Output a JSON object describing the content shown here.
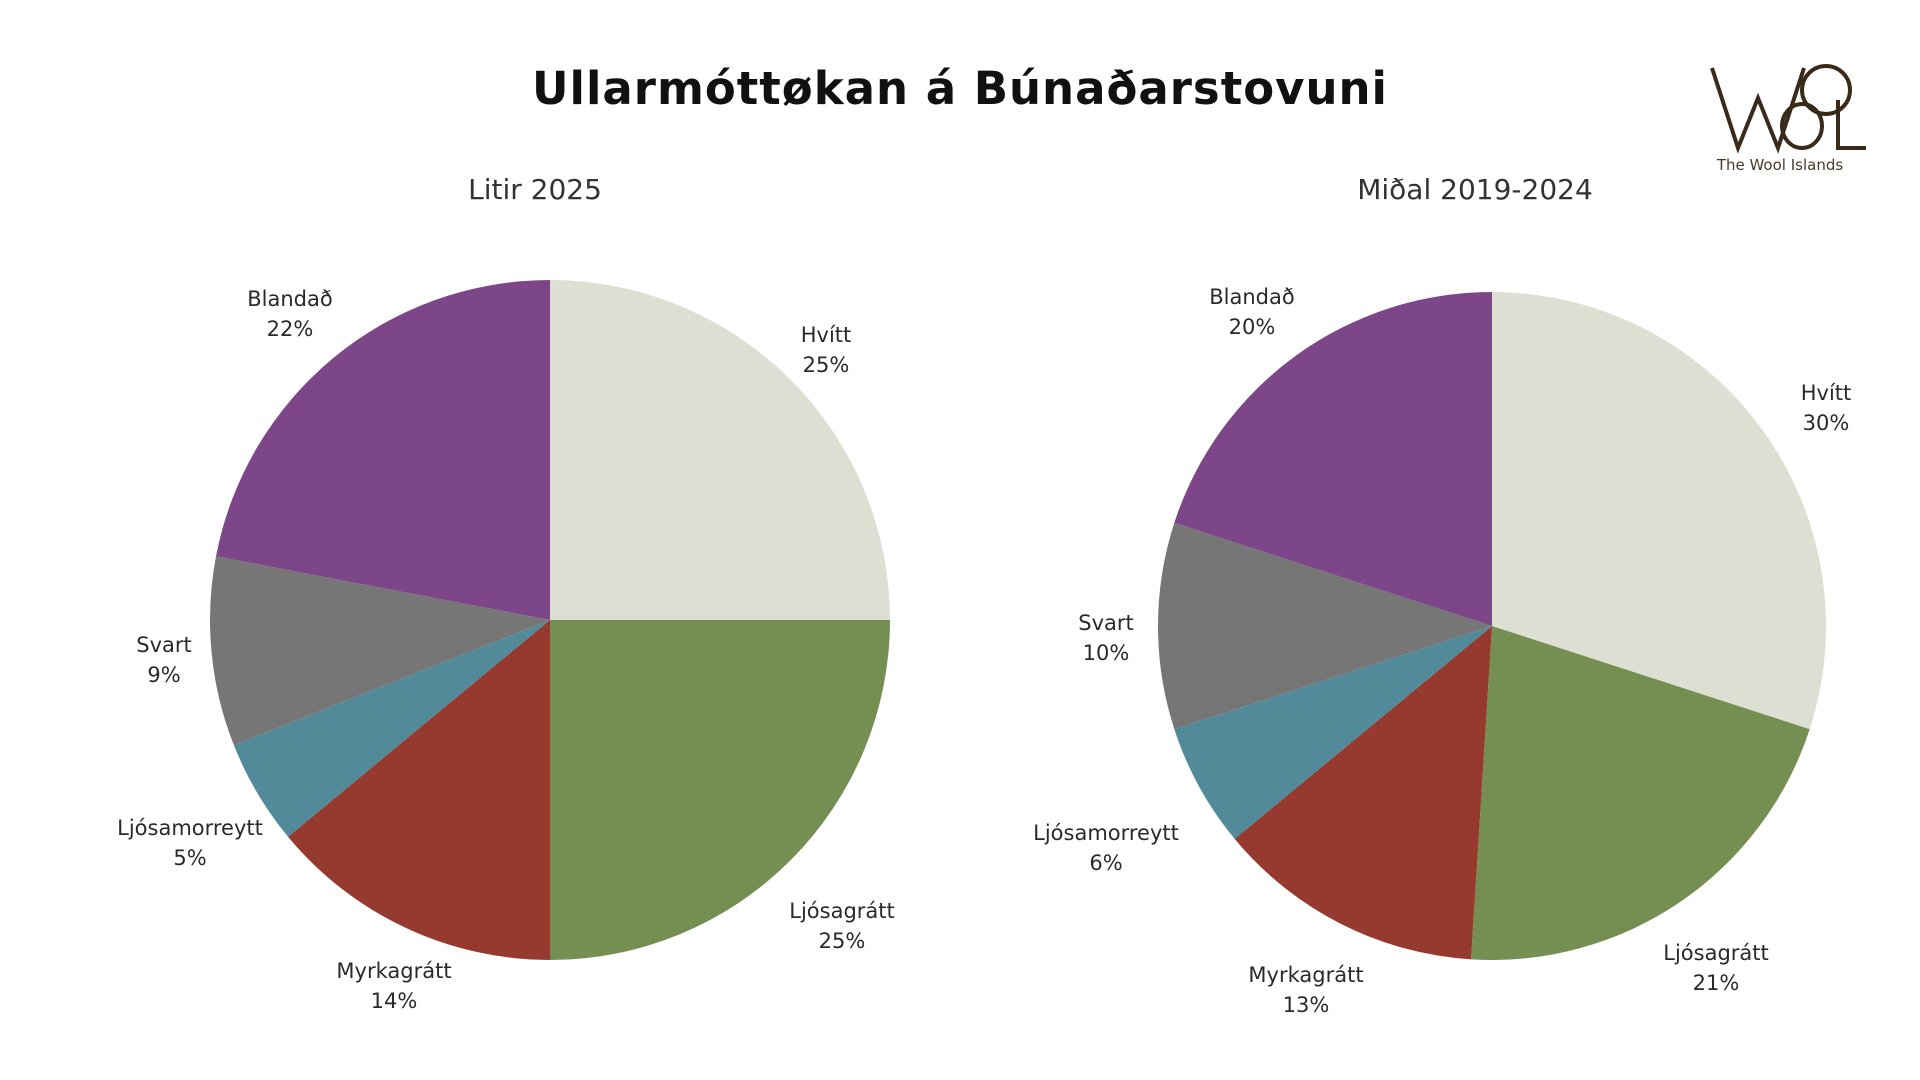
{
  "title": "Ullarmóttøkan á Búnaðarstovuni",
  "logo": {
    "caption": "The Wool Islands",
    "glyphs": "WOOL",
    "color": "#3a2a1a"
  },
  "chart_data": [
    {
      "type": "pie",
      "title": "Litir 2025",
      "start_angle": "12 o'clock",
      "direction": "clockwise",
      "slices": [
        {
          "label": "Hvítt",
          "value": 25,
          "value_label": "25%",
          "color": "#DDDFD3"
        },
        {
          "label": "Ljósagrátt",
          "value": 25,
          "value_label": "25%",
          "color": "#748F51"
        },
        {
          "label": "Myrkagrátt",
          "value": 14,
          "value_label": "14%",
          "color": "#963A2F"
        },
        {
          "label": "Ljósamorreytt",
          "value": 5,
          "value_label": "5%",
          "color": "#528A99"
        },
        {
          "label": "Svart",
          "value": 9,
          "value_label": "9%",
          "color": "#767676"
        },
        {
          "label": "Blandað",
          "value": 22,
          "value_label": "22%",
          "color": "#7D4689"
        }
      ]
    },
    {
      "type": "pie",
      "title": "Miðal 2019-2024",
      "start_angle": "12 o'clock",
      "direction": "clockwise",
      "slices": [
        {
          "label": "Hvítt",
          "value": 30,
          "value_label": "30%",
          "color": "#DDDFD3"
        },
        {
          "label": "Ljósagrátt",
          "value": 21,
          "value_label": "21%",
          "color": "#748F51"
        },
        {
          "label": "Myrkagrátt",
          "value": 13,
          "value_label": "13%",
          "color": "#963A2F"
        },
        {
          "label": "Ljósamorreytt",
          "value": 6,
          "value_label": "6%",
          "color": "#528A99"
        },
        {
          "label": "Svart",
          "value": 10,
          "value_label": "10%",
          "color": "#767676"
        },
        {
          "label": "Blandað",
          "value": 20,
          "value_label": "20%",
          "color": "#7D4689"
        }
      ]
    }
  ]
}
